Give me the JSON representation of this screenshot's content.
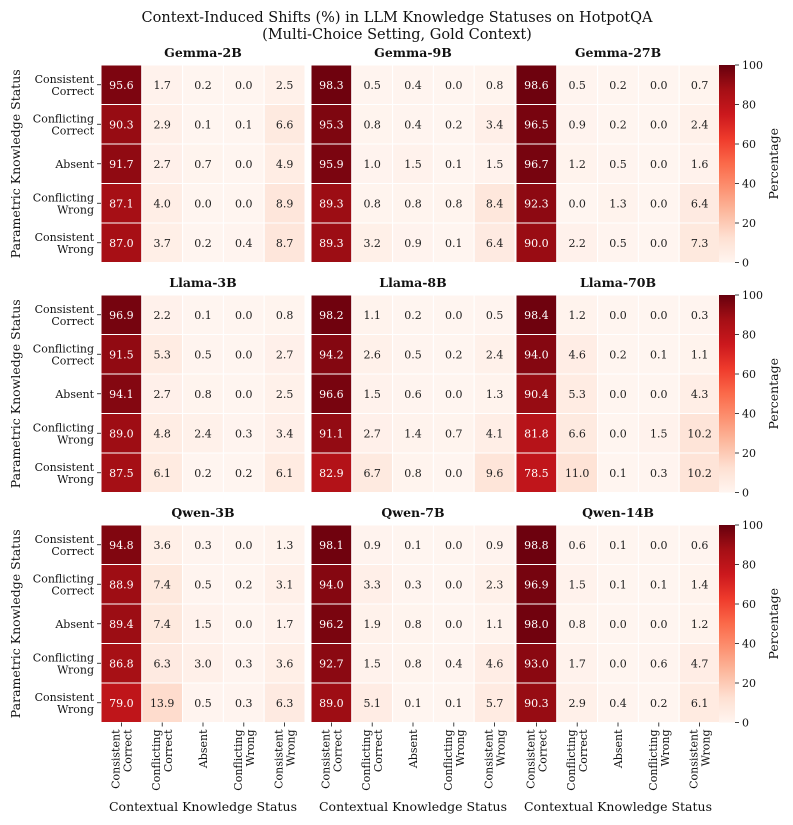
{
  "title": "Context-Induced Shifts (%) in LLM Knowledge Statuses on HotpotQA",
  "subtitle": "(Multi-Choice Setting, Gold Context)",
  "colorbar": {
    "label": "Percentage",
    "ticks": [
      0,
      20,
      40,
      60,
      80,
      100
    ],
    "range": [
      0,
      100
    ],
    "colors": [
      "#fff5f0",
      "#fee0d2",
      "#fcbba1",
      "#fc9272",
      "#fb6a4a",
      "#ef3b2c",
      "#cb181d",
      "#a50f15",
      "#67000d"
    ]
  },
  "chart_data": {
    "type": "heatmap",
    "xlabel": "Contextual Knowledge Status",
    "ylabel": "Parametric Knowledge Status",
    "rows": [
      "Consistent\nCorrect",
      "Conflicting\nCorrect",
      "Absent",
      "Conflicting\nWrong",
      "Consistent\nWrong"
    ],
    "cols": [
      "Consistent\nCorrect",
      "Conflicting\nCorrect",
      "Absent",
      "Conflicting\nWrong",
      "Consistent\nWrong"
    ],
    "panels": [
      {
        "name": "Gemma-2B",
        "values": [
          [
            95.6,
            1.7,
            0.2,
            0.0,
            2.5
          ],
          [
            90.3,
            2.9,
            0.1,
            0.1,
            6.6
          ],
          [
            91.7,
            2.7,
            0.7,
            0.0,
            4.9
          ],
          [
            87.1,
            4.0,
            0.0,
            0.0,
            8.9
          ],
          [
            87.0,
            3.7,
            0.2,
            0.4,
            8.7
          ]
        ]
      },
      {
        "name": "Gemma-9B",
        "values": [
          [
            98.3,
            0.5,
            0.4,
            0.0,
            0.8
          ],
          [
            95.3,
            0.8,
            0.4,
            0.2,
            3.4
          ],
          [
            95.9,
            1.0,
            1.5,
            0.1,
            1.5
          ],
          [
            89.3,
            0.8,
            0.8,
            0.8,
            8.4
          ],
          [
            89.3,
            3.2,
            0.9,
            0.1,
            6.4
          ]
        ]
      },
      {
        "name": "Gemma-27B",
        "values": [
          [
            98.6,
            0.5,
            0.2,
            0.0,
            0.7
          ],
          [
            96.5,
            0.9,
            0.2,
            0.0,
            2.4
          ],
          [
            96.7,
            1.2,
            0.5,
            0.0,
            1.6
          ],
          [
            92.3,
            0.0,
            1.3,
            0.0,
            6.4
          ],
          [
            90.0,
            2.2,
            0.5,
            0.0,
            7.3
          ]
        ]
      },
      {
        "name": "Llama-3B",
        "values": [
          [
            96.9,
            2.2,
            0.1,
            0.0,
            0.8
          ],
          [
            91.5,
            5.3,
            0.5,
            0.0,
            2.7
          ],
          [
            94.1,
            2.7,
            0.8,
            0.0,
            2.5
          ],
          [
            89.0,
            4.8,
            2.4,
            0.3,
            3.4
          ],
          [
            87.5,
            6.1,
            0.2,
            0.2,
            6.1
          ]
        ]
      },
      {
        "name": "Llama-8B",
        "values": [
          [
            98.2,
            1.1,
            0.2,
            0.0,
            0.5
          ],
          [
            94.2,
            2.6,
            0.5,
            0.2,
            2.4
          ],
          [
            96.6,
            1.5,
            0.6,
            0.0,
            1.3
          ],
          [
            91.1,
            2.7,
            1.4,
            0.7,
            4.1
          ],
          [
            82.9,
            6.7,
            0.8,
            0.0,
            9.6
          ]
        ]
      },
      {
        "name": "Llama-70B",
        "values": [
          [
            98.4,
            1.2,
            0.0,
            0.0,
            0.3
          ],
          [
            94.0,
            4.6,
            0.2,
            0.1,
            1.1
          ],
          [
            90.4,
            5.3,
            0.0,
            0.0,
            4.3
          ],
          [
            81.8,
            6.6,
            0.0,
            1.5,
            10.2
          ],
          [
            78.5,
            11.0,
            0.1,
            0.3,
            10.2
          ]
        ]
      },
      {
        "name": "Qwen-3B",
        "values": [
          [
            94.8,
            3.6,
            0.3,
            0.0,
            1.3
          ],
          [
            88.9,
            7.4,
            0.5,
            0.2,
            3.1
          ],
          [
            89.4,
            7.4,
            1.5,
            0.0,
            1.7
          ],
          [
            86.8,
            6.3,
            3.0,
            0.3,
            3.6
          ],
          [
            79.0,
            13.9,
            0.5,
            0.3,
            6.3
          ]
        ]
      },
      {
        "name": "Qwen-7B",
        "values": [
          [
            98.1,
            0.9,
            0.1,
            0.0,
            0.9
          ],
          [
            94.0,
            3.3,
            0.3,
            0.0,
            2.3
          ],
          [
            96.2,
            1.9,
            0.8,
            0.0,
            1.1
          ],
          [
            92.7,
            1.5,
            0.8,
            0.4,
            4.6
          ],
          [
            89.0,
            5.1,
            0.1,
            0.1,
            5.7
          ]
        ]
      },
      {
        "name": "Qwen-14B",
        "values": [
          [
            98.8,
            0.6,
            0.1,
            0.0,
            0.6
          ],
          [
            96.9,
            1.5,
            0.1,
            0.1,
            1.4
          ],
          [
            98.0,
            0.8,
            0.0,
            0.0,
            1.2
          ],
          [
            93.0,
            1.7,
            0.0,
            0.6,
            4.7
          ],
          [
            90.3,
            2.9,
            0.4,
            0.2,
            6.1
          ]
        ]
      }
    ]
  }
}
